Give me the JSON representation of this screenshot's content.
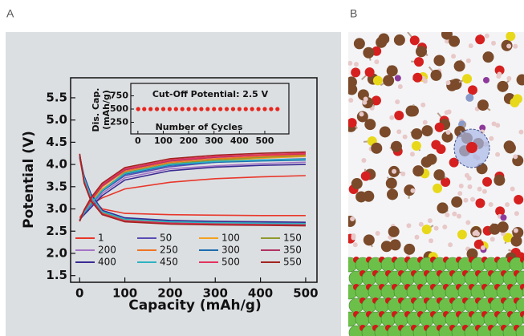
{
  "panels": {
    "a": "A",
    "b": "B"
  },
  "chart_data": {
    "type": "line",
    "xlabel": "Capacity (mAh/g)",
    "ylabel": "Potential (V)",
    "xlim": [
      -20,
      525
    ],
    "ylim": [
      1.35,
      5.95
    ],
    "xticks": [
      0,
      100,
      200,
      300,
      400,
      500
    ],
    "yticks": [
      {
        "value": 1.5,
        "label": "1.5"
      },
      {
        "value": 2,
        "label": "2.0"
      },
      {
        "value": 2.5,
        "label": "2.5"
      },
      {
        "value": 3,
        "label": "3.0"
      },
      {
        "value": 3.5,
        "label": "3.5"
      },
      {
        "value": 4,
        "label": "4.0"
      },
      {
        "value": 4.5,
        "label": "4.5"
      },
      {
        "value": 5,
        "label": "5.0"
      },
      {
        "value": 5.5,
        "label": "5.5"
      }
    ],
    "x": [
      0,
      10,
      25,
      50,
      100,
      200,
      300,
      400,
      500
    ],
    "series": [
      {
        "name": "1",
        "color": "#e8372a",
        "charge": [
          2.8,
          2.95,
          3.1,
          3.25,
          3.45,
          3.6,
          3.68,
          3.72,
          3.75
        ],
        "discharge": [
          4.15,
          3.6,
          3.25,
          3.0,
          2.9,
          2.87,
          2.86,
          2.85,
          2.85
        ]
      },
      {
        "name": "50",
        "color": "#5a4cb4",
        "charge": [
          2.75,
          2.9,
          3.1,
          3.4,
          3.75,
          3.95,
          4.05,
          4.1,
          4.13
        ],
        "discharge": [
          4.2,
          3.7,
          3.3,
          2.95,
          2.78,
          2.72,
          2.7,
          2.69,
          2.68
        ]
      },
      {
        "name": "100",
        "color": "#f2a11f",
        "charge": [
          2.75,
          2.92,
          3.15,
          3.45,
          3.8,
          4.0,
          4.08,
          4.14,
          4.18
        ],
        "discharge": [
          4.2,
          3.68,
          3.28,
          2.93,
          2.76,
          2.71,
          2.69,
          2.68,
          2.67
        ]
      },
      {
        "name": "150",
        "color": "#8f9a2c",
        "charge": [
          2.74,
          2.9,
          3.12,
          3.42,
          3.82,
          4.02,
          4.1,
          4.16,
          4.2
        ],
        "discharge": [
          4.22,
          3.66,
          3.26,
          2.92,
          2.75,
          2.7,
          2.68,
          2.67,
          2.66
        ]
      },
      {
        "name": "200",
        "color": "#a374c6",
        "charge": [
          2.76,
          2.88,
          3.05,
          3.35,
          3.7,
          3.9,
          3.97,
          4.02,
          4.05
        ],
        "discharge": [
          4.18,
          3.72,
          3.32,
          2.96,
          2.79,
          2.73,
          2.71,
          2.7,
          2.69
        ]
      },
      {
        "name": "250",
        "color": "#f07422",
        "charge": [
          2.74,
          2.93,
          3.18,
          3.5,
          3.85,
          4.05,
          4.13,
          4.18,
          4.22
        ],
        "discharge": [
          4.22,
          3.64,
          3.24,
          2.9,
          2.74,
          2.69,
          2.67,
          2.66,
          2.65
        ]
      },
      {
        "name": "300",
        "color": "#1b6caf",
        "charge": [
          2.75,
          2.9,
          3.1,
          3.4,
          3.78,
          3.98,
          4.05,
          4.08,
          4.1
        ],
        "discharge": [
          4.2,
          3.7,
          3.3,
          2.94,
          2.77,
          2.72,
          2.7,
          2.68,
          2.67
        ]
      },
      {
        "name": "350",
        "color": "#b23262",
        "charge": [
          2.73,
          2.95,
          3.2,
          3.52,
          3.88,
          4.08,
          4.16,
          4.21,
          4.24
        ],
        "discharge": [
          4.22,
          3.62,
          3.22,
          2.89,
          2.73,
          2.68,
          2.66,
          2.65,
          2.64
        ]
      },
      {
        "name": "400",
        "color": "#3a2b93",
        "charge": [
          2.76,
          2.87,
          3.03,
          3.3,
          3.65,
          3.86,
          3.94,
          3.98,
          4.0
        ],
        "discharge": [
          4.17,
          3.74,
          3.34,
          2.97,
          2.8,
          2.74,
          2.72,
          2.71,
          2.7
        ]
      },
      {
        "name": "450",
        "color": "#2fb2c2",
        "charge": [
          2.75,
          2.91,
          3.12,
          3.42,
          3.8,
          4.0,
          4.07,
          4.1,
          4.12
        ],
        "discharge": [
          4.2,
          3.69,
          3.29,
          2.94,
          2.77,
          2.71,
          2.69,
          2.68,
          2.67
        ]
      },
      {
        "name": "500",
        "color": "#e2345f",
        "charge": [
          2.73,
          2.96,
          3.22,
          3.55,
          3.9,
          4.1,
          4.18,
          4.22,
          4.25
        ],
        "discharge": [
          4.23,
          3.6,
          3.2,
          2.88,
          2.72,
          2.67,
          2.65,
          2.64,
          2.63
        ]
      },
      {
        "name": "550",
        "color": "#a2231f",
        "charge": [
          2.72,
          2.98,
          3.25,
          3.58,
          3.93,
          4.13,
          4.21,
          4.25,
          4.28
        ],
        "discharge": [
          4.24,
          3.58,
          3.18,
          2.87,
          2.71,
          2.66,
          2.64,
          2.63,
          2.62
        ]
      }
    ],
    "inset": {
      "title": "Cut-Off Potential: 2.5 V",
      "xlabel": "Number of Cycles",
      "ylabel": [
        "Dis. Cap.",
        "(mAh/g)"
      ],
      "xlim": [
        -28,
        595
      ],
      "ylim": [
        30,
        985
      ],
      "xticks": [
        0,
        100,
        200,
        300,
        400,
        500
      ],
      "yticks": [
        250,
        500,
        750
      ],
      "color": "#e8241c",
      "x": [
        1,
        25,
        50,
        75,
        100,
        125,
        150,
        175,
        200,
        225,
        250,
        275,
        300,
        325,
        350,
        375,
        400,
        425,
        450,
        475,
        500,
        525,
        550
      ],
      "values": [
        500,
        500,
        500,
        500,
        500,
        500,
        500,
        500,
        500,
        500,
        500,
        500,
        500,
        500,
        500,
        500,
        500,
        500,
        500,
        500,
        500,
        500,
        500
      ]
    }
  }
}
